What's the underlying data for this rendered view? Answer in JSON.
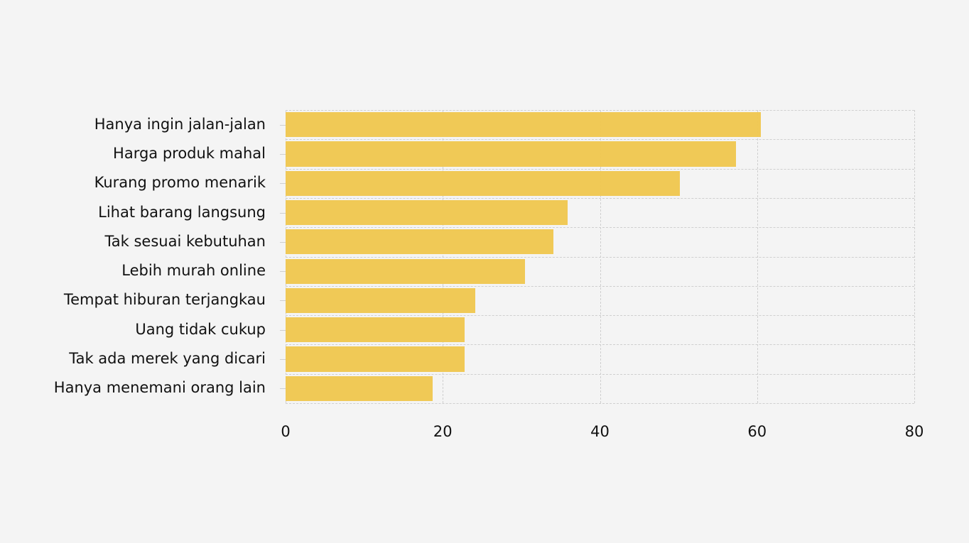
{
  "chart_data": {
    "type": "bar",
    "orientation": "horizontal",
    "title": "",
    "xlabel": "",
    "ylabel": "",
    "xlim": [
      0,
      80
    ],
    "xticks": [
      "0",
      "20",
      "40",
      "60",
      "80"
    ],
    "grid": true,
    "bar_color": "#f0c751",
    "categories": [
      "Hanya ingin jalan-jalan",
      "Harga produk mahal",
      "Kurang promo menarik",
      "Lihat barang langsung",
      "Tak sesuai kebutuhan",
      "Lebih murah online",
      "Tempat hiburan terjangkau",
      "Uang tidak cukup",
      "Tak ada merek yang dicari",
      "Hanya menemani orang lain"
    ],
    "values": [
      60.5,
      57.3,
      50.2,
      35.9,
      34.1,
      30.5,
      24.1,
      22.8,
      22.8,
      18.7
    ]
  }
}
